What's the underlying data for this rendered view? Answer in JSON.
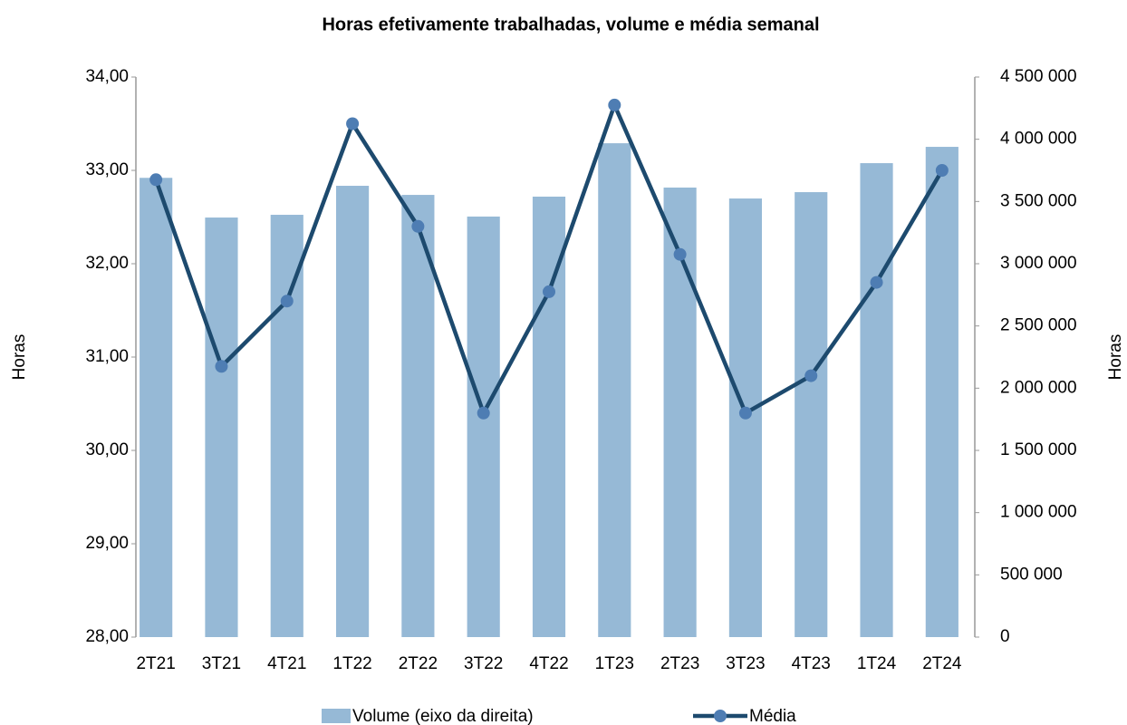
{
  "chart_data": {
    "type": "bar_line",
    "title": "Horas efetivamente trabalhadas, volume e média semanal",
    "y_label": "Horas",
    "y2_label": "Horas",
    "categories": [
      "2T21",
      "3T21",
      "4T21",
      "1T22",
      "2T22",
      "3T22",
      "4T22",
      "1T23",
      "2T23",
      "3T23",
      "4T23",
      "1T24",
      "2T24"
    ],
    "series": [
      {
        "name": "Volume (eixo da direita)",
        "type": "bar",
        "axis": "y2",
        "color": "#96b9d6",
        "values": [
          3690000,
          3371000,
          3393000,
          3626000,
          3553000,
          3379000,
          3539000,
          3968000,
          3612000,
          3524000,
          3575000,
          3808000,
          3939000
        ]
      },
      {
        "name": "Média",
        "type": "line",
        "axis": "y",
        "color": "#1d4a6e",
        "marker_color": "#4e7db3",
        "values": [
          32.9,
          30.9,
          31.6,
          33.5,
          32.4,
          30.4,
          31.7,
          33.7,
          32.1,
          30.4,
          30.8,
          31.8,
          33.0
        ]
      }
    ],
    "ylim": [
      28,
      34
    ],
    "yticks": [
      {
        "value": 28,
        "label": "28,00"
      },
      {
        "value": 29,
        "label": "29,00"
      },
      {
        "value": 30,
        "label": "30,00"
      },
      {
        "value": 31,
        "label": "31,00"
      },
      {
        "value": 32,
        "label": "32,00"
      },
      {
        "value": 33,
        "label": "33,00"
      },
      {
        "value": 34,
        "label": "34,00"
      }
    ],
    "y2lim": [
      0,
      4500000
    ],
    "y2ticks": [
      0,
      {
        "value": 500000,
        "label": "500 000"
      },
      {
        "value": 1000000,
        "label": "1 000 000"
      },
      {
        "value": 1500000,
        "label": "1 500 000"
      },
      {
        "value": 2000000,
        "label": "2 000 000"
      },
      {
        "value": 2500000,
        "label": "2 500 000"
      },
      {
        "value": 3000000,
        "label": "3 000 000"
      },
      {
        "value": 3500000,
        "label": "3 500 000"
      },
      {
        "value": 4000000,
        "label": "4 000 000"
      },
      {
        "value": 4500000,
        "label": "4 500 000"
      }
    ],
    "grid": false,
    "legend": "bottom"
  }
}
